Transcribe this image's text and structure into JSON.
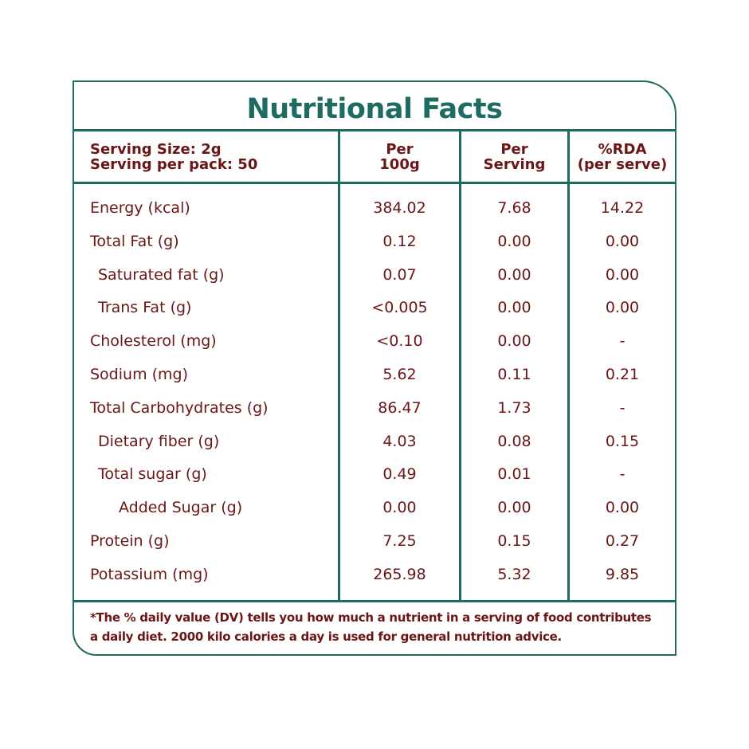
{
  "title": "Nutritional Facts",
  "header": {
    "serving_size": "Serving Size: 2g",
    "serving_per_pack": "Serving per pack: 50",
    "col1_line1": "Per",
    "col1_line2": "100g",
    "col2_line1": "Per",
    "col2_line2": "Serving",
    "col3_line1": "%RDA",
    "col3_line2": "(per serve)"
  },
  "rows": [
    {
      "label": "Energy (kcal)",
      "indent": 0,
      "per100": "384.02",
      "serving": "7.68",
      "rda": "14.22"
    },
    {
      "label": "Total Fat (g)",
      "indent": 0,
      "per100": "0.12",
      "serving": "0.00",
      "rda": "0.00"
    },
    {
      "label": "Saturated fat (g)",
      "indent": 1,
      "per100": "0.07",
      "serving": "0.00",
      "rda": "0.00"
    },
    {
      "label": "Trans Fat (g)",
      "indent": 1,
      "per100": "<0.005",
      "serving": "0.00",
      "rda": "0.00"
    },
    {
      "label": "Cholesterol (mg)",
      "indent": 0,
      "per100": "<0.10",
      "serving": "0.00",
      "rda": "-"
    },
    {
      "label": "Sodium (mg)",
      "indent": 0,
      "per100": "5.62",
      "serving": "0.11",
      "rda": "0.21"
    },
    {
      "label": "Total Carbohydrates  (g)",
      "indent": 0,
      "per100": "86.47",
      "serving": "1.73",
      "rda": "-"
    },
    {
      "label": "Dietary fiber (g)",
      "indent": 1,
      "per100": "4.03",
      "serving": "0.08",
      "rda": "0.15"
    },
    {
      "label": "Total sugar (g)",
      "indent": 1,
      "per100": "0.49",
      "serving": "0.01",
      "rda": "-"
    },
    {
      "label": "Added Sugar (g)",
      "indent": 2,
      "per100": "0.00",
      "serving": "0.00",
      "rda": "0.00"
    },
    {
      "label": "Protein (g)",
      "indent": 0,
      "per100": "7.25",
      "serving": "0.15",
      "rda": "0.27"
    },
    {
      "label": "Potassium (mg)",
      "indent": 0,
      "per100": "265.98",
      "serving": "5.32",
      "rda": "9.85"
    }
  ],
  "footnote": "*The % daily value (DV) tells you how much a nutrient in a serving of food contributes a daily diet. 2000 kilo calories a day is used for general nutrition advice.",
  "colors": {
    "teal": "#1d6b61",
    "text": "#6b1616"
  }
}
